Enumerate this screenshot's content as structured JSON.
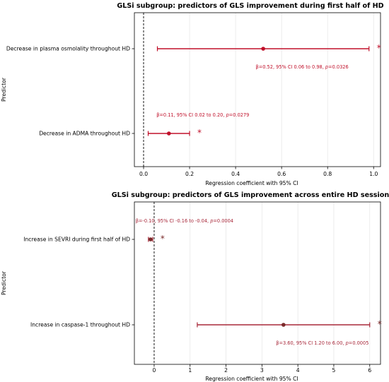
{
  "chart_data": [
    {
      "type": "forest",
      "title": "GLSi subgroup: predictors of GLS improvement during first half of HD",
      "xlabel": "Regression coefficient with 95% CI",
      "ylabel": "Predictor",
      "xlim": [
        -0.04,
        1.03
      ],
      "xticks": [
        0.0,
        0.2,
        0.4,
        0.6,
        0.8,
        1.0
      ],
      "xtick_labels": [
        "0.0",
        "0.2",
        "0.4",
        "0.6",
        "0.8",
        "1.0"
      ],
      "reference_line": 0,
      "grid": "vertical",
      "color": "#c0102a",
      "rows": [
        {
          "label": "Decrease in plasma osmolality throughout HD",
          "estimate": 0.52,
          "ci_low": 0.06,
          "ci_high": 0.98,
          "annotation": "β=0.52, 95% CI 0.06 to 0.98, p=0.0326",
          "annotation_position": "below",
          "star": "*"
        },
        {
          "label": "Decrease in ADMA throughout HD",
          "estimate": 0.11,
          "ci_low": 0.02,
          "ci_high": 0.2,
          "annotation": "β=0.11, 95% CI 0.02 to 0.20, p=0.0279",
          "annotation_position": "above",
          "star": "*"
        }
      ]
    },
    {
      "type": "forest",
      "title": "GLSi subgroup: predictors of GLS improvement across entire HD session",
      "xlabel": "Regression coefficient with 95% CI",
      "ylabel": "Predictor",
      "xlim": [
        -0.55,
        6.3
      ],
      "xticks": [
        0,
        1,
        2,
        3,
        4,
        5,
        6
      ],
      "xtick_labels": [
        "0",
        "1",
        "2",
        "3",
        "4",
        "5",
        "6"
      ],
      "reference_line": 0,
      "grid": "vertical",
      "color": "#a8283a",
      "rows": [
        {
          "label": "Increase in SEVRI during first half of HD",
          "estimate": -0.1,
          "ci_low": -0.16,
          "ci_high": -0.04,
          "annotation": "β=-0.10, 95% CI -0.16 to -0.04, p=0.0004",
          "annotation_position": "above",
          "star": "*"
        },
        {
          "label": "Increase in caspase-1 throughout HD",
          "estimate": 3.6,
          "ci_low": 1.2,
          "ci_high": 6.0,
          "annotation": "β=3.60, 95% CI 1.20 to 6.00, p=0.0005",
          "annotation_position": "below",
          "star": "*"
        }
      ]
    }
  ]
}
